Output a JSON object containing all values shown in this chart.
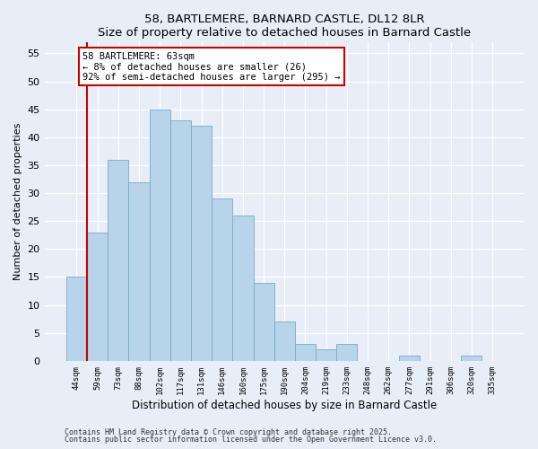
{
  "title": "58, BARTLEMERE, BARNARD CASTLE, DL12 8LR",
  "subtitle": "Size of property relative to detached houses in Barnard Castle",
  "xlabel": "Distribution of detached houses by size in Barnard Castle",
  "ylabel": "Number of detached properties",
  "bar_labels": [
    "44sqm",
    "59sqm",
    "73sqm",
    "88sqm",
    "102sqm",
    "117sqm",
    "131sqm",
    "146sqm",
    "160sqm",
    "175sqm",
    "190sqm",
    "204sqm",
    "219sqm",
    "233sqm",
    "248sqm",
    "262sqm",
    "277sqm",
    "291sqm",
    "306sqm",
    "320sqm",
    "335sqm"
  ],
  "bar_values": [
    15,
    23,
    36,
    32,
    45,
    43,
    42,
    29,
    26,
    14,
    7,
    3,
    2,
    3,
    0,
    0,
    1,
    0,
    0,
    1,
    0
  ],
  "bar_color": "#b8d4ea",
  "bar_edge_color": "#7aaac8",
  "vline_color": "#cc0000",
  "annotation_text": "58 BARTLEMERE: 63sqm\n← 8% of detached houses are smaller (26)\n92% of semi-detached houses are larger (295) →",
  "annotation_box_edgecolor": "#cc0000",
  "ylim": [
    0,
    57
  ],
  "yticks": [
    0,
    5,
    10,
    15,
    20,
    25,
    30,
    35,
    40,
    45,
    50,
    55
  ],
  "background_color": "#e8eef8",
  "grid_color": "#ffffff",
  "footer_line1": "Contains HM Land Registry data © Crown copyright and database right 2025.",
  "footer_line2": "Contains public sector information licensed under the Open Government Licence v3.0."
}
